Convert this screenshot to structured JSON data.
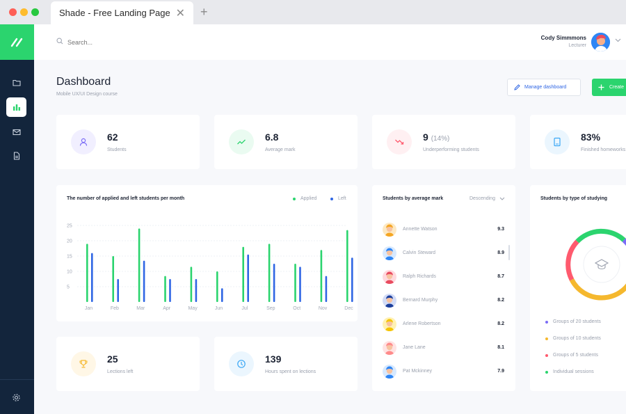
{
  "browser": {
    "tab_title": "Shade - Free Landing Page",
    "close_glyph": "✕",
    "new_tab_glyph": "+"
  },
  "header": {
    "search_placeholder": "Search...",
    "user_name": "Cody Simmmons",
    "user_role": "Lecturer"
  },
  "page": {
    "title": "Dashboard",
    "subtitle": "Mobile UX/UI Design course",
    "manage_label": "Manage dashboard",
    "create_label": "Create"
  },
  "stats": [
    {
      "value": "62",
      "extra": "",
      "label": "Students",
      "icon": "user-icon",
      "color": "#7b6cf6",
      "bg": "#f1efff"
    },
    {
      "value": "6.8",
      "extra": "",
      "label": "Average mark",
      "icon": "trend-up-icon",
      "color": "#2bd46e",
      "bg": "#eafbf1"
    },
    {
      "value": "9",
      "extra": "(14%)",
      "label": "Underperforming students",
      "icon": "trend-down-icon",
      "color": "#ff5a6e",
      "bg": "#fff0f2"
    },
    {
      "value": "83%",
      "extra": "",
      "label": "Finished homeworks",
      "icon": "book-icon",
      "color": "#3aa7f5",
      "bg": "#ebf6fe"
    }
  ],
  "stats_bottom": [
    {
      "value": "25",
      "label": "Lections left",
      "icon": "trophy-icon",
      "color": "#f5b82e",
      "bg": "#fff7e6"
    },
    {
      "value": "139",
      "label": "Hours spent on lections",
      "icon": "clock-icon",
      "color": "#3aa7f5",
      "bg": "#ebf6fe"
    }
  ],
  "bar_chart": {
    "title": "The number of applied and left students per month",
    "legend_applied": "Applied",
    "legend_left": "Left"
  },
  "chart_data": {
    "type": "bar",
    "categories": [
      "Jan",
      "Feb",
      "Mar",
      "Apr",
      "May",
      "Jun",
      "Jul",
      "Sep",
      "Oct",
      "Nov",
      "Dec"
    ],
    "series": [
      {
        "name": "Applied",
        "color": "#2bd46e",
        "values": [
          19,
          15,
          24,
          8.5,
          11.5,
          10,
          18,
          19,
          12.5,
          17,
          23.5
        ]
      },
      {
        "name": "Left",
        "color": "#2f66e4",
        "values": [
          16,
          7.5,
          13.5,
          7.5,
          7.5,
          4.5,
          15.5,
          12.5,
          11.5,
          8.5,
          14.5
        ]
      }
    ],
    "yticks": [
      5,
      10,
      15,
      20,
      25
    ],
    "ylim": [
      0,
      25
    ]
  },
  "students_by_mark": {
    "title": "Students by average mark",
    "sort_label": "Descending",
    "rows": [
      {
        "name": "Annette Watson",
        "mark": "9.3",
        "skin": "#f5a623",
        "bg": "#fde9c4"
      },
      {
        "name": "Calvin Steward",
        "mark": "8.9",
        "skin": "#2e86f5",
        "bg": "#d7e9ff"
      },
      {
        "name": "Ralph Richards",
        "mark": "8.7",
        "skin": "#e94b5f",
        "bg": "#ffd9de"
      },
      {
        "name": "Bernard Murphy",
        "mark": "8.2",
        "skin": "#1c3f9c",
        "bg": "#d3dcf7"
      },
      {
        "name": "Arlene Robertson",
        "mark": "8.2",
        "skin": "#f5c400",
        "bg": "#fff1b3"
      },
      {
        "name": "Jane Lane",
        "mark": "8.1",
        "skin": "#ff8b8b",
        "bg": "#ffe3e3"
      },
      {
        "name": "Pat Mckinney",
        "mark": "7.9",
        "skin": "#2e86f5",
        "bg": "#d7e9ff"
      }
    ]
  },
  "students_by_type": {
    "title": "Students by type of studying",
    "center_icon": "graduation-cap-icon",
    "items": [
      {
        "label": "Groups of 20 students",
        "color": "#7b6cf6"
      },
      {
        "label": "Groups of 10 students",
        "color": "#f5b82e"
      },
      {
        "label": "Groups of 5 students",
        "color": "#ff5a6e"
      },
      {
        "label": "Individual sessions",
        "color": "#2bd46e"
      }
    ]
  }
}
